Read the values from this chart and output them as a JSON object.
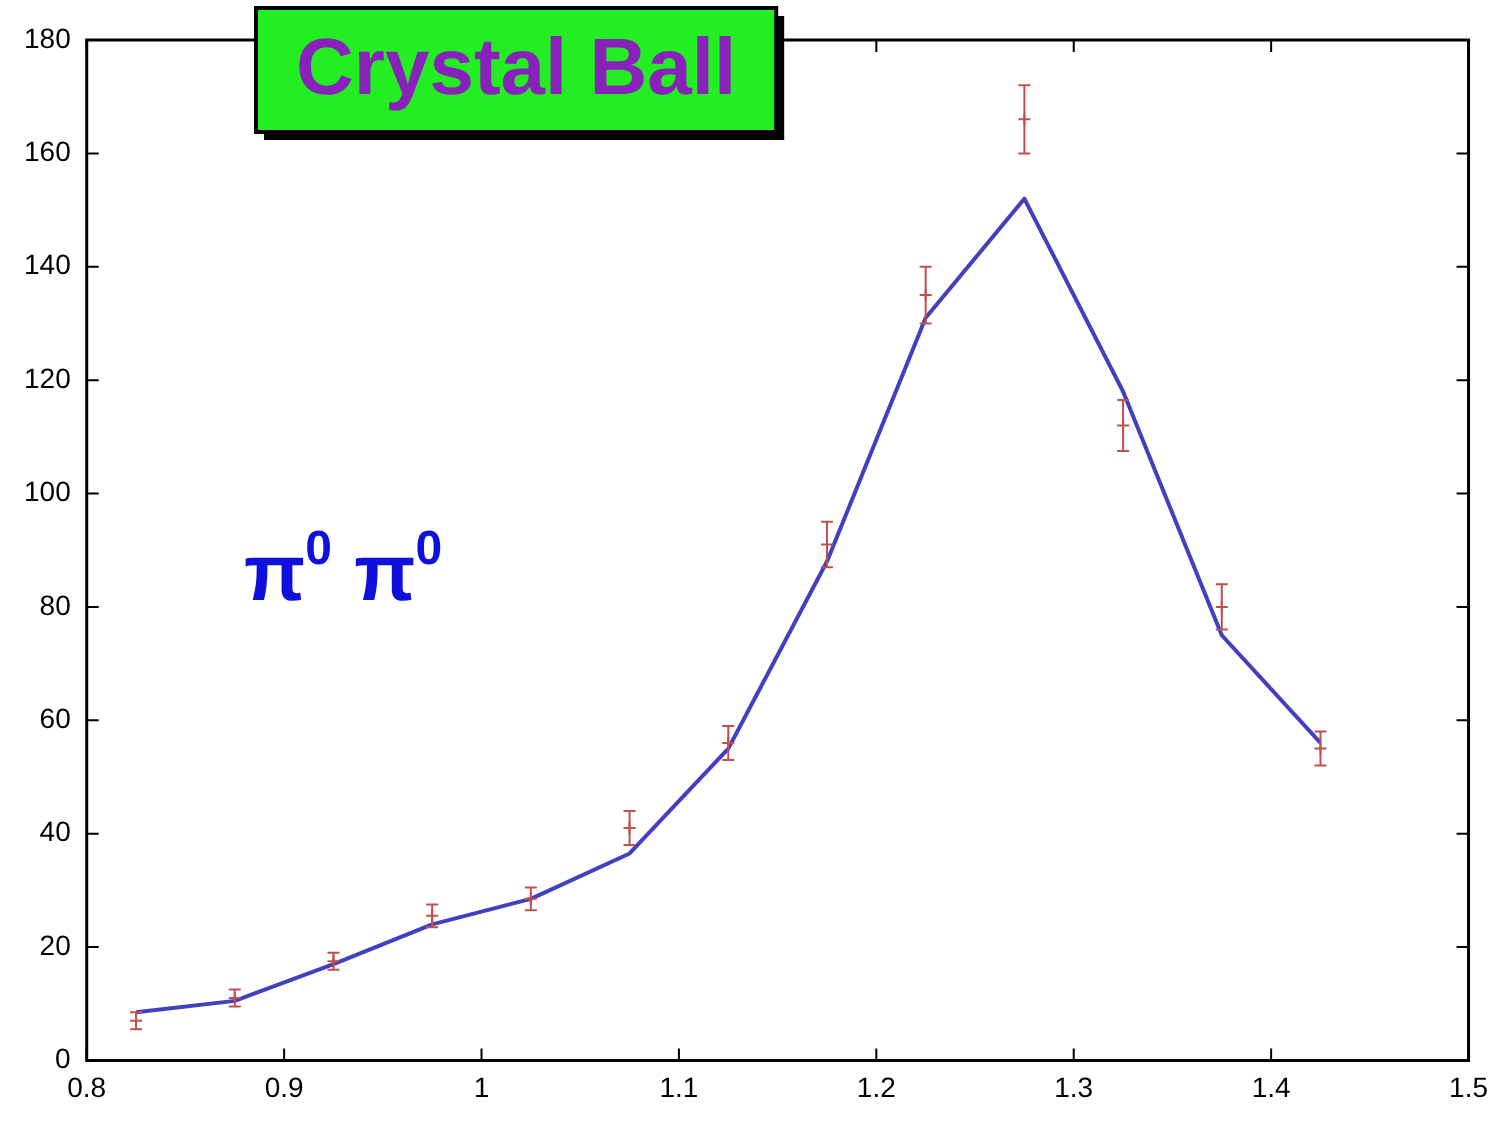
{
  "chart_data": {
    "type": "scatter",
    "title": "Crystal Ball",
    "annotations": [
      "π$^{0}$ π$^{0}$"
    ],
    "xlim": [
      0.8,
      1.5
    ],
    "xticks": [
      0.8,
      0.9,
      1,
      1.1,
      1.2,
      1.3,
      1.4,
      1.5
    ],
    "ylim": [
      0,
      180
    ],
    "yticks": [
      0,
      20,
      40,
      60,
      80,
      100,
      120,
      140,
      160,
      180
    ],
    "grid": false,
    "legend": false,
    "series": [
      {
        "color": "#c05050",
        "marker": "cross",
        "x": [
          0.825,
          0.875,
          0.925,
          0.975,
          1.025,
          1.075,
          1.125,
          1.175,
          1.225,
          1.275,
          1.325,
          1.375,
          1.425
        ],
        "values": [
          7,
          11,
          17.5,
          25.5,
          28.5,
          41,
          56,
          91,
          135,
          166,
          112,
          80,
          55
        ],
        "errors": [
          1.5,
          1.5,
          1.5,
          2,
          2,
          3,
          3,
          4,
          5,
          6,
          4.5,
          4,
          3
        ]
      },
      {
        "type": "line",
        "color": "#4040c0",
        "marker": "none",
        "line_style": "solid",
        "x": [
          0.825,
          0.875,
          0.925,
          0.975,
          1.025,
          1.075,
          1.125,
          1.175,
          1.225,
          1.275,
          1.325,
          1.375,
          1.425
        ],
        "values": [
          8.5,
          10.5,
          17,
          24,
          28.5,
          36.5,
          55,
          88,
          131,
          152,
          118,
          75,
          56
        ]
      }
    ]
  }
}
